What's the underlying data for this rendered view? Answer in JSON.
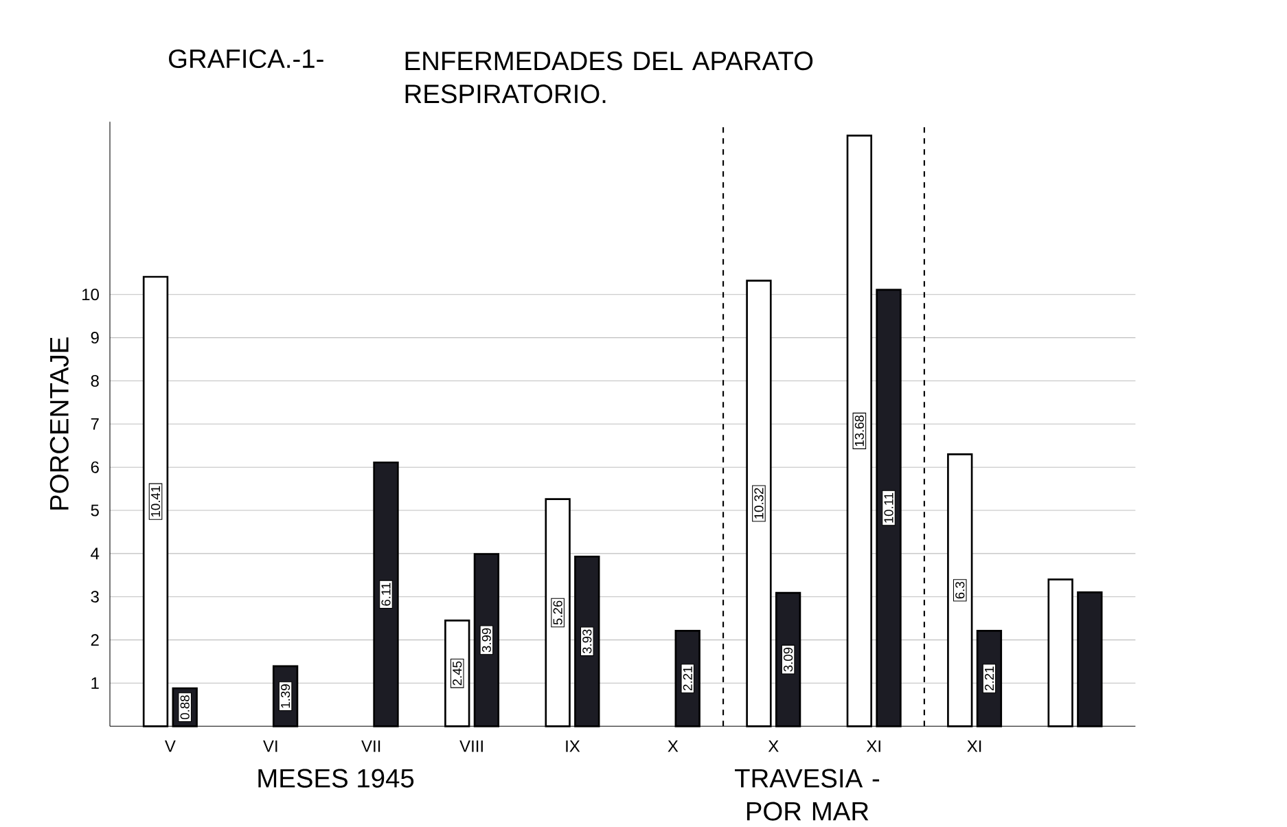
{
  "chart_data": {
    "type": "bar",
    "title": "GRAFICA.-1-",
    "subtitle": "ENFERMEDADES DEL APARATO RESPIRATORIO.",
    "xlabel": "MESES 1945",
    "ylabel": "PORCENTAJE",
    "categories": [
      "V",
      "VI",
      "VII",
      "VIII",
      "IX",
      "X",
      "X",
      "XI",
      "XI",
      null
    ],
    "series": [
      {
        "color": "#ffffff",
        "values": [
          10.41,
          null,
          null,
          2.45,
          5.26,
          null,
          10.32,
          13.68,
          6.3,
          3.4
        ],
        "value_labels": [
          "10.41",
          null,
          null,
          "2.45",
          "5.26",
          null,
          "10.32",
          "13.68",
          "6.3",
          null
        ]
      },
      {
        "color": "#1c1c24",
        "values": [
          0.88,
          1.39,
          6.11,
          3.99,
          3.93,
          2.21,
          3.09,
          10.11,
          2.21,
          3.1
        ],
        "value_labels": [
          "0.88",
          "1.39",
          "6.11",
          "3.99",
          "3.93",
          "2.21",
          "3.09",
          "10.11",
          "2.21",
          null
        ]
      }
    ],
    "ylim": [
      0,
      14
    ],
    "yticks": [
      1,
      2,
      3,
      4,
      5,
      6,
      7,
      8,
      9,
      10
    ],
    "grid": "y",
    "annotations": [
      "TRAVESIA - POR MAR"
    ]
  }
}
